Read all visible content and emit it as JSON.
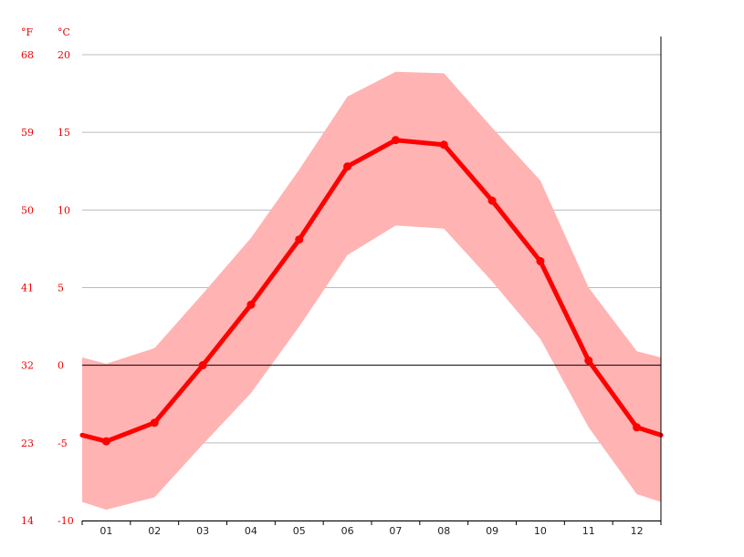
{
  "chart_data": {
    "type": "line",
    "units": {
      "fahrenheit": "°F",
      "celsius": "°C"
    },
    "categories": [
      "01",
      "02",
      "03",
      "04",
      "05",
      "06",
      "07",
      "08",
      "09",
      "10",
      "11",
      "12"
    ],
    "y_ticks_c": [
      "20",
      "15",
      "10",
      "5",
      "0",
      "-5",
      "-10"
    ],
    "y_ticks_f": [
      "68",
      "59",
      "50",
      "41",
      "32",
      "23",
      "14"
    ],
    "ylim": [
      -10,
      20
    ],
    "series": [
      {
        "values": [
          -4.9,
          -3.7,
          0.0,
          3.9,
          8.1,
          12.8,
          14.5,
          14.2,
          10.6,
          6.7,
          0.3,
          -4.0
        ]
      }
    ],
    "range_band": {
      "max": [
        0.1,
        1.1,
        4.6,
        8.2,
        12.6,
        17.3,
        18.9,
        18.8,
        15.3,
        11.9,
        5.0,
        0.9
      ],
      "min": [
        -9.3,
        -8.5,
        -5.1,
        -1.8,
        2.5,
        7.1,
        9.0,
        8.8,
        5.4,
        1.7,
        -4.0,
        -8.3
      ]
    },
    "edge_values": {
      "line": {
        "left": -4.5,
        "right": -4.5
      },
      "max": {
        "left": 0.5,
        "right": 0.5
      },
      "min": {
        "left": -8.8,
        "right": -8.8
      }
    },
    "grid": true,
    "colors": {
      "line": "#ff0000",
      "band": "#ffb3b3",
      "grid": "#bbbbbb",
      "zero": "#000000",
      "tick_labels": "#ee0000"
    }
  }
}
